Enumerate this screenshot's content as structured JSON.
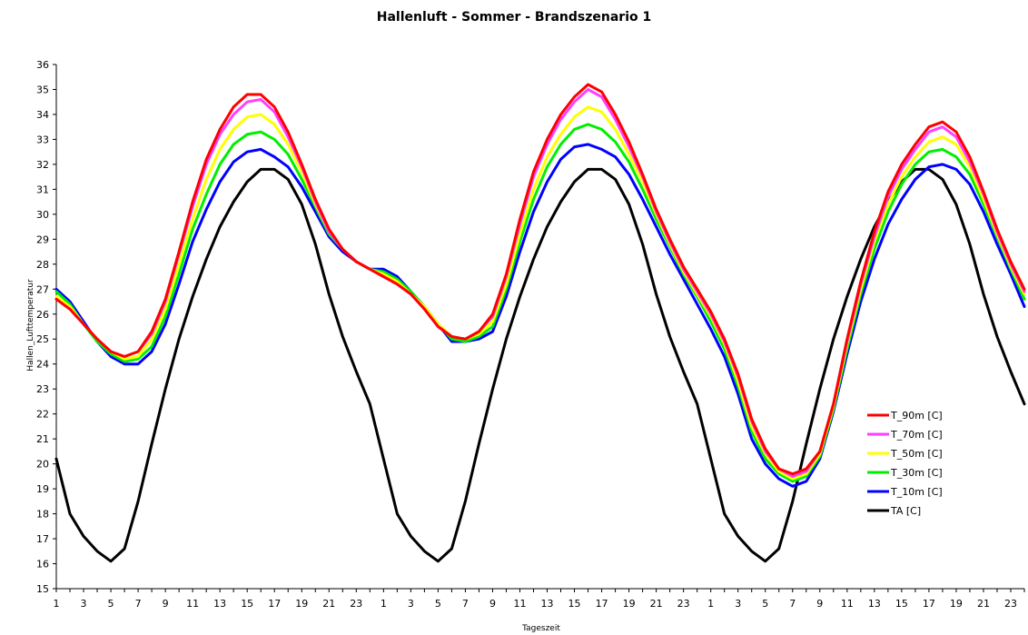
{
  "chart_data": {
    "type": "line",
    "title": "Hallenluft - Sommer - Brandszenario 1",
    "xlabel": "Tageszeit",
    "ylabel": "Hallen_Lufttemperatur",
    "ylim": [
      15,
      36
    ],
    "yticks": [
      15,
      16,
      17,
      18,
      19,
      20,
      21,
      22,
      23,
      24,
      25,
      26,
      27,
      28,
      29,
      30,
      31,
      32,
      33,
      34,
      35,
      36
    ],
    "x": [
      1,
      2,
      3,
      4,
      5,
      6,
      7,
      8,
      9,
      10,
      11,
      12,
      13,
      14,
      15,
      16,
      17,
      18,
      19,
      20,
      21,
      22,
      23,
      24,
      1,
      2,
      3,
      4,
      5,
      6,
      7,
      8,
      9,
      10,
      11,
      12,
      13,
      14,
      15,
      16,
      17,
      18,
      19,
      20,
      21,
      22,
      23,
      24,
      1,
      2,
      3,
      4,
      5,
      6,
      7,
      8,
      9,
      10,
      11,
      12,
      13,
      14,
      15,
      16,
      17,
      18,
      19,
      20,
      21,
      22,
      23,
      24
    ],
    "x_tick_labels": [
      "1",
      "3",
      "5",
      "7",
      "9",
      "11",
      "13",
      "15",
      "17",
      "19",
      "21",
      "23",
      "1",
      "3",
      "5",
      "7",
      "9",
      "11",
      "13",
      "15",
      "17",
      "19",
      "21",
      "23",
      "1",
      "3",
      "5",
      "7",
      "9",
      "11",
      "13",
      "15",
      "17",
      "19",
      "21",
      "23"
    ],
    "grid": false,
    "legend_position": "right",
    "series": [
      {
        "name": "T_90m [C]",
        "color": "#ff0000",
        "values": [
          26.6,
          26.2,
          25.6,
          25.0,
          24.5,
          24.3,
          24.5,
          25.3,
          26.6,
          28.5,
          30.5,
          32.2,
          33.4,
          34.3,
          34.8,
          34.8,
          34.3,
          33.3,
          32.0,
          30.6,
          29.4,
          28.6,
          28.1,
          27.8,
          27.5,
          27.2,
          26.8,
          26.2,
          25.5,
          25.1,
          25.0,
          25.3,
          26.0,
          27.6,
          29.8,
          31.7,
          33.0,
          34.0,
          34.7,
          35.2,
          34.9,
          34.0,
          32.9,
          31.6,
          30.2,
          29.0,
          27.9,
          27.0,
          26.1,
          25.0,
          23.6,
          21.8,
          20.6,
          19.8,
          19.6,
          19.8,
          20.5,
          22.4,
          25.0,
          27.3,
          29.3,
          30.9,
          32.0,
          32.8,
          33.5,
          33.7,
          33.3,
          32.3,
          30.9,
          29.4,
          28.1,
          27.0
        ]
      },
      {
        "name": "T_70m [C]",
        "color": "#ff40ff",
        "values": [
          26.6,
          26.2,
          25.6,
          25.0,
          24.5,
          24.3,
          24.5,
          25.2,
          26.5,
          28.4,
          30.3,
          32.0,
          33.2,
          34.0,
          34.5,
          34.6,
          34.1,
          33.1,
          31.9,
          30.5,
          29.3,
          28.6,
          28.1,
          27.8,
          27.5,
          27.2,
          26.8,
          26.2,
          25.5,
          25.1,
          25.0,
          25.3,
          25.9,
          27.5,
          29.6,
          31.5,
          32.8,
          33.8,
          34.5,
          35.0,
          34.7,
          33.8,
          32.7,
          31.5,
          30.1,
          28.9,
          27.8,
          26.9,
          26.0,
          24.9,
          23.5,
          21.7,
          20.5,
          19.8,
          19.5,
          19.7,
          20.5,
          22.4,
          24.9,
          27.2,
          29.1,
          30.7,
          31.8,
          32.6,
          33.3,
          33.5,
          33.1,
          32.1,
          30.8,
          29.3,
          28.0,
          26.9
        ]
      },
      {
        "name": "T_50m [C]",
        "color": "#ffff00",
        "values": [
          26.7,
          26.3,
          25.6,
          25.0,
          24.5,
          24.2,
          24.3,
          25.0,
          26.2,
          28.0,
          29.8,
          31.4,
          32.6,
          33.4,
          33.9,
          34.0,
          33.6,
          32.8,
          31.7,
          30.4,
          29.3,
          28.6,
          28.1,
          27.8,
          27.6,
          27.3,
          26.8,
          26.3,
          25.6,
          25.1,
          25.0,
          25.2,
          25.7,
          27.2,
          29.2,
          31.0,
          32.3,
          33.2,
          33.9,
          34.3,
          34.1,
          33.4,
          32.4,
          31.3,
          30.0,
          28.8,
          27.7,
          26.8,
          25.9,
          24.8,
          23.3,
          21.5,
          20.4,
          19.7,
          19.4,
          19.6,
          20.4,
          22.3,
          24.8,
          27.0,
          28.9,
          30.4,
          31.5,
          32.3,
          32.9,
          33.1,
          32.8,
          31.9,
          30.6,
          29.2,
          27.9,
          26.8
        ]
      },
      {
        "name": "T_30m [C]",
        "color": "#00ee00",
        "values": [
          26.9,
          26.4,
          25.6,
          24.9,
          24.4,
          24.1,
          24.2,
          24.7,
          25.9,
          27.6,
          29.4,
          30.8,
          32.0,
          32.8,
          33.2,
          33.3,
          33.0,
          32.4,
          31.4,
          30.3,
          29.2,
          28.6,
          28.1,
          27.8,
          27.7,
          27.4,
          26.9,
          26.3,
          25.6,
          25.0,
          24.9,
          25.1,
          25.5,
          27.0,
          28.9,
          30.6,
          31.9,
          32.8,
          33.4,
          33.6,
          33.4,
          32.9,
          32.1,
          31.0,
          29.8,
          28.7,
          27.6,
          26.7,
          25.7,
          24.6,
          23.1,
          21.3,
          20.2,
          19.6,
          19.3,
          19.5,
          20.3,
          22.2,
          24.6,
          26.8,
          28.6,
          30.1,
          31.2,
          32.0,
          32.5,
          32.6,
          32.3,
          31.6,
          30.4,
          29.1,
          27.8,
          26.6
        ]
      },
      {
        "name": "T_10m [C]",
        "color": "#0000ff",
        "values": [
          27.0,
          26.5,
          25.7,
          24.9,
          24.3,
          24.0,
          24.0,
          24.5,
          25.6,
          27.2,
          28.9,
          30.2,
          31.3,
          32.1,
          32.5,
          32.6,
          32.3,
          31.9,
          31.1,
          30.1,
          29.1,
          28.5,
          28.1,
          27.8,
          27.8,
          27.5,
          26.9,
          26.3,
          25.6,
          24.9,
          24.9,
          25.0,
          25.3,
          26.7,
          28.5,
          30.1,
          31.3,
          32.2,
          32.7,
          32.8,
          32.6,
          32.3,
          31.6,
          30.6,
          29.5,
          28.4,
          27.4,
          26.4,
          25.4,
          24.3,
          22.8,
          21.0,
          20.0,
          19.4,
          19.1,
          19.3,
          20.2,
          22.1,
          24.4,
          26.5,
          28.2,
          29.6,
          30.6,
          31.4,
          31.9,
          32.0,
          31.8,
          31.2,
          30.1,
          28.8,
          27.6,
          26.3
        ]
      },
      {
        "name": "TA [C]",
        "color": "#000000",
        "values": [
          20.2,
          18.0,
          17.1,
          16.5,
          16.1,
          16.6,
          18.5,
          20.8,
          23.0,
          25.0,
          26.7,
          28.2,
          29.5,
          30.5,
          31.3,
          31.8,
          31.8,
          31.4,
          30.4,
          28.8,
          26.8,
          25.1,
          23.7,
          22.4,
          20.2,
          18.0,
          17.1,
          16.5,
          16.1,
          16.6,
          18.5,
          20.8,
          23.0,
          25.0,
          26.7,
          28.2,
          29.5,
          30.5,
          31.3,
          31.8,
          31.8,
          31.4,
          30.4,
          28.8,
          26.8,
          25.1,
          23.7,
          22.4,
          20.2,
          18.0,
          17.1,
          16.5,
          16.1,
          16.6,
          18.5,
          20.8,
          23.0,
          25.0,
          26.7,
          28.2,
          29.5,
          30.5,
          31.3,
          31.8,
          31.8,
          31.4,
          30.4,
          28.8,
          26.8,
          25.1,
          23.7,
          22.4
        ]
      }
    ]
  }
}
